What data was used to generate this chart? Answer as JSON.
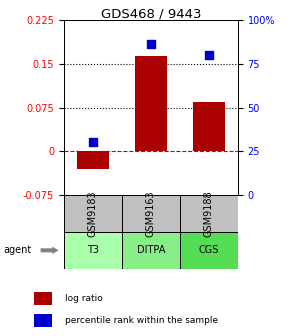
{
  "title": "GDS468 / 9443",
  "samples": [
    "GSM9183",
    "GSM9163",
    "GSM9188"
  ],
  "agents": [
    "T3",
    "DITPA",
    "CGS"
  ],
  "log_ratios": [
    -0.03,
    0.163,
    0.085
  ],
  "percentile_ranks": [
    0.3,
    0.865,
    0.8
  ],
  "ylim_left": [
    -0.075,
    0.225
  ],
  "ylim_right": [
    0,
    1.0
  ],
  "yticks_left": [
    -0.075,
    0,
    0.075,
    0.15,
    0.225
  ],
  "ytick_labels_left": [
    "-0.075",
    "0",
    "0.075",
    "0.15",
    "0.225"
  ],
  "yticks_right": [
    0.0,
    0.25,
    0.5,
    0.75,
    1.0
  ],
  "ytick_labels_right": [
    "0",
    "25",
    "50",
    "75",
    "100%"
  ],
  "bar_color": "#AA0000",
  "dot_color": "#0000CC",
  "sample_bg": "#C0C0C0",
  "agent_bg_colors": [
    "#AAFFAA",
    "#88EE88",
    "#55DD55"
  ],
  "hline_y": [
    0.075,
    0.15
  ],
  "zero_line_color": "#CC0000",
  "bar_width": 0.55,
  "dot_size": 28,
  "title_fontsize": 9.5,
  "tick_fontsize": 7,
  "label_fontsize": 7,
  "legend_fontsize": 6.5,
  "agent_label": "agent"
}
